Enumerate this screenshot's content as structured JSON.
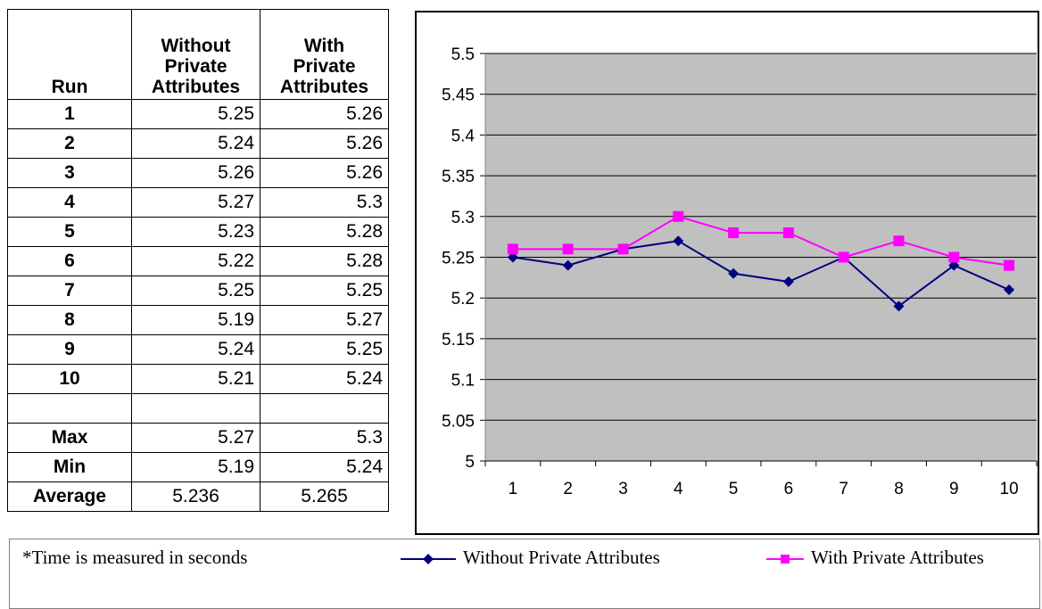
{
  "table": {
    "headers": [
      "Run",
      "Without\nPrivate\nAttributes",
      "With\nPrivate\nAttributes"
    ],
    "rows": [
      [
        "1",
        "5.25",
        "5.26"
      ],
      [
        "2",
        "5.24",
        "5.26"
      ],
      [
        "3",
        "5.26",
        "5.26"
      ],
      [
        "4",
        "5.27",
        "5.3"
      ],
      [
        "5",
        "5.23",
        "5.28"
      ],
      [
        "6",
        "5.22",
        "5.28"
      ],
      [
        "7",
        "5.25",
        "5.25"
      ],
      [
        "8",
        "5.19",
        "5.27"
      ],
      [
        "9",
        "5.24",
        "5.25"
      ],
      [
        "10",
        "5.21",
        "5.24"
      ],
      [
        "",
        "",
        ""
      ],
      [
        "Max",
        "5.27",
        "5.3"
      ],
      [
        "Min",
        "5.19",
        "5.24"
      ],
      [
        "Average",
        "5.236",
        "5.265"
      ]
    ]
  },
  "footnote": "*Time is measured in seconds",
  "colors": {
    "plot_background": "#C0C0C0",
    "series_without": "#000080",
    "series_with": "#FF00FF"
  },
  "chart_data": {
    "type": "line",
    "title": "",
    "xlabel": "",
    "ylabel": "",
    "x": [
      "1",
      "2",
      "3",
      "4",
      "5",
      "6",
      "7",
      "8",
      "9",
      "10"
    ],
    "ylim": [
      5,
      5.5
    ],
    "yticks": [
      "5",
      "5.05",
      "5.1",
      "5.15",
      "5.2",
      "5.25",
      "5.3",
      "5.35",
      "5.4",
      "5.45",
      "5.5"
    ],
    "grid": true,
    "legend": "bottom",
    "series": [
      {
        "name": "Without Private Attributes",
        "marker": "diamond",
        "values": [
          5.25,
          5.24,
          5.26,
          5.27,
          5.23,
          5.22,
          5.25,
          5.19,
          5.24,
          5.21
        ]
      },
      {
        "name": "With Private Attributes",
        "marker": "square",
        "values": [
          5.26,
          5.26,
          5.26,
          5.3,
          5.28,
          5.28,
          5.25,
          5.27,
          5.25,
          5.24
        ]
      }
    ]
  }
}
